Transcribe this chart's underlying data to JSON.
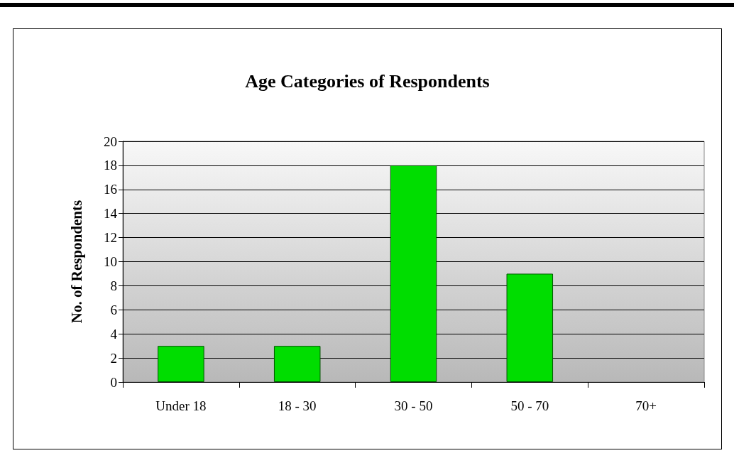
{
  "chart_data": {
    "type": "bar",
    "title": "Age Categories of Respondents",
    "ylabel": "No. of Respondents",
    "categories": [
      "Under 18",
      "18 - 30",
      "30 - 50",
      "50 - 70",
      "70+"
    ],
    "values": [
      3,
      3,
      18,
      9,
      0
    ],
    "color": "#00dd00",
    "ylim": [
      0,
      20
    ],
    "yticks": [
      0,
      2,
      4,
      6,
      8,
      10,
      12,
      14,
      16,
      18,
      20
    ],
    "grid": "y"
  }
}
